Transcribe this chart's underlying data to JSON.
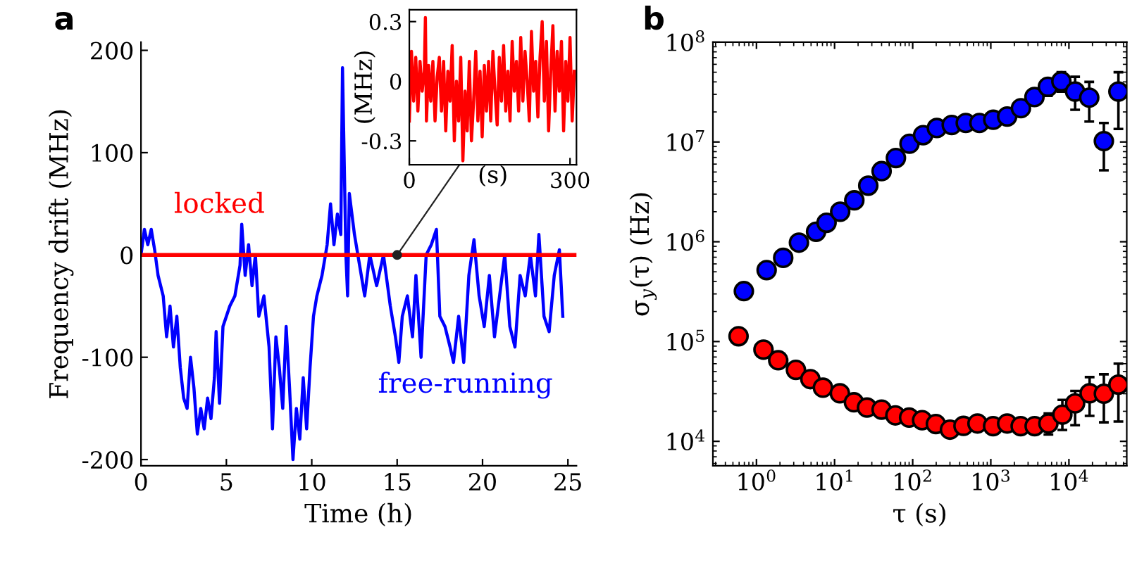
{
  "chart_data": [
    {
      "type": "line",
      "title": "a",
      "xlabel": "Time (h)",
      "ylabel": "Frequency drift (MHz)",
      "xlim": [
        0,
        25.5
      ],
      "xticks": [
        0,
        5,
        10,
        15,
        20,
        25
      ],
      "ylim": [
        -206,
        208
      ],
      "yticks": [
        {
          "value": -200,
          "label": "-200"
        },
        {
          "value": -100,
          "label": "-100"
        },
        0,
        100,
        200
      ],
      "grid": false,
      "legend": false,
      "marker": "none",
      "line_style": "solid",
      "annotations": [
        "free-running",
        "locked"
      ],
      "series": [
        {
          "color": "#0000ff",
          "x": [
            0,
            0.2,
            0.4,
            0.6,
            0.8,
            1.0,
            1.3,
            1.5,
            1.7,
            1.9,
            2.1,
            2.3,
            2.5,
            2.7,
            2.9,
            3.1,
            3.3,
            3.5,
            3.7,
            3.9,
            4.1,
            4.3,
            4.4,
            4.6,
            4.8,
            5.0,
            5.2,
            5.5,
            5.8,
            5.9,
            6.1,
            6.3,
            6.5,
            6.7,
            6.9,
            7.2,
            7.5,
            7.7,
            7.9,
            8.1,
            8.3,
            8.5,
            8.7,
            8.9,
            9.1,
            9.3,
            9.5,
            9.7,
            9.9,
            10.1,
            10.3,
            10.6,
            10.9,
            11.1,
            11.3,
            11.5,
            11.7,
            11.8,
            12.0,
            12.1,
            12.2,
            12.5,
            12.8,
            13.1,
            13.4,
            13.8,
            14.2,
            14.6,
            14.9,
            15.1,
            15.3,
            15.6,
            15.9,
            16.1,
            16.4,
            16.7,
            17.0,
            17.3,
            17.5,
            17.8,
            18.1,
            18.3,
            18.6,
            18.9,
            19.2,
            19.5,
            19.8,
            20.1,
            20.4,
            20.7,
            21.0,
            21.3,
            21.6,
            21.9,
            22.2,
            22.5,
            22.8,
            23.1,
            23.3,
            23.6,
            23.9,
            24.2,
            24.5,
            24.7
          ],
          "values": [
            0,
            25,
            10,
            25,
            5,
            -20,
            -40,
            -80,
            -50,
            -90,
            -60,
            -110,
            -140,
            -150,
            -100,
            -130,
            -175,
            -150,
            -170,
            -140,
            -160,
            -120,
            -75,
            -145,
            -70,
            -60,
            -50,
            -40,
            -10,
            30,
            -20,
            10,
            -30,
            0,
            -60,
            -40,
            -90,
            -170,
            -80,
            -110,
            -150,
            -70,
            -130,
            -200,
            -150,
            -180,
            -120,
            -170,
            -110,
            -60,
            -40,
            -20,
            10,
            50,
            10,
            40,
            20,
            183,
            0,
            -40,
            60,
            20,
            -10,
            -40,
            0,
            -30,
            0,
            -50,
            -80,
            -105,
            -60,
            -40,
            -80,
            -20,
            -100,
            0,
            10,
            25,
            -60,
            -70,
            -90,
            -105,
            -60,
            -105,
            -20,
            15,
            -40,
            -70,
            -20,
            -80,
            -40,
            0,
            -70,
            -90,
            -20,
            -40,
            0,
            -40,
            20,
            -60,
            -75,
            -20,
            5,
            -60
          ]
        },
        {
          "color": "#ff0000",
          "x": [
            0,
            25.5
          ],
          "values": [
            0,
            0
          ]
        }
      ]
    },
    {
      "type": "line",
      "xlabel": "(s)",
      "ylabel": "(MHz)",
      "xlim": [
        0,
        312
      ],
      "xticks": [
        0,
        300
      ],
      "ylim": [
        -0.42,
        0.36
      ],
      "yticks": [
        {
          "value": -0.3,
          "label": "-0.3"
        },
        0,
        0.3
      ],
      "grid": false,
      "legend": false,
      "marker": "none",
      "line_style": "solid",
      "series": [
        {
          "color": "#ff0000",
          "x": [
            0,
            4,
            8,
            12,
            16,
            20,
            24,
            28,
            30,
            32,
            36,
            40,
            44,
            48,
            52,
            56,
            60,
            64,
            68,
            72,
            76,
            80,
            84,
            88,
            92,
            96,
            100,
            104,
            108,
            112,
            116,
            120,
            124,
            128,
            132,
            136,
            140,
            144,
            148,
            152,
            156,
            160,
            164,
            168,
            172,
            176,
            180,
            184,
            188,
            192,
            196,
            200,
            204,
            208,
            212,
            216,
            220,
            224,
            228,
            232,
            236,
            240,
            244,
            248,
            252,
            256,
            260,
            264,
            268,
            272,
            276,
            280,
            284,
            288,
            292,
            296,
            300,
            304,
            308
          ],
          "values": [
            -0.2,
            0.15,
            -0.1,
            0.12,
            -0.15,
            0.1,
            -0.05,
            0.05,
            0.32,
            -0.2,
            0.08,
            -0.1,
            0.1,
            -0.2,
            0.02,
            0.12,
            -0.15,
            0.1,
            -0.25,
            0.05,
            -0.1,
            0.18,
            -0.3,
            0.0,
            -0.2,
            0.12,
            -0.4,
            -0.05,
            -0.25,
            0.1,
            -0.3,
            -0.1,
            0.15,
            -0.2,
            0.05,
            -0.28,
            0.08,
            -0.15,
            0.1,
            -0.2,
            0.15,
            -0.05,
            -0.22,
            0.12,
            -0.1,
            0.18,
            -0.15,
            0.05,
            -0.2,
            0.2,
            -0.05,
            0.1,
            -0.15,
            0.22,
            -0.1,
            0.15,
            0.0,
            -0.2,
            0.25,
            -0.05,
            0.1,
            -0.18,
            0.12,
            0.3,
            -0.1,
            0.2,
            -0.25,
            0.05,
            0.28,
            -0.15,
            0.15,
            -0.05,
            0.2,
            -0.25,
            0.1,
            -0.1,
            0.22,
            -0.2,
            0.05
          ]
        }
      ]
    },
    {
      "type": "scatter",
      "title": "b",
      "xlabel": "τ (s)",
      "ylabel": "σ$_{y}$(τ) (Hz)",
      "log": "xy",
      "xlim": [
        0.277,
        55000
      ],
      "ylim": [
        5700,
        100000000
      ],
      "xticks": [
        {
          "value": 1,
          "label": "10$^{0}$"
        },
        {
          "value": 10,
          "label": "10$^{1}$"
        },
        {
          "value": 100,
          "label": "10$^{2}$"
        },
        {
          "value": 1000,
          "label": "10$^{3}$"
        },
        {
          "value": 10000,
          "label": "10$^{4}$"
        }
      ],
      "yticks": [
        {
          "value": 10000,
          "label": "10$^{4}$"
        },
        {
          "value": 100000,
          "label": "10$^{5}$"
        },
        {
          "value": 1000000,
          "label": "10$^{6}$"
        },
        {
          "value": 10000000,
          "label": "10$^{7}$"
        },
        {
          "value": 100000000,
          "label": "10$^{8}$"
        }
      ],
      "grid": false,
      "legend": false,
      "marker": "circle",
      "series": [
        {
          "color": "#0000ff",
          "x": [
            0.69,
            1.35,
            2.2,
            3.5,
            5.8,
            7.9,
            11.8,
            17.9,
            27,
            40,
            61,
            91,
            136,
            204,
            316,
            478,
            715,
            1075,
            1620,
            2430,
            3620,
            5380,
            8000,
            12000,
            18200,
            28000,
            43000
          ],
          "values": [
            320000,
            520000,
            690000,
            980000,
            1260000,
            1550000,
            2000000,
            2600000,
            3650000,
            5100000,
            6900000,
            9600000,
            11700000,
            13800000,
            14800000,
            15500000,
            15500000,
            16700000,
            18000000,
            21800000,
            28200000,
            35700000,
            40600000,
            32000000,
            27800000,
            10200000,
            32000000
          ],
          "errors": [
            null,
            null,
            null,
            null,
            null,
            null,
            null,
            null,
            null,
            null,
            null,
            null,
            null,
            null,
            null,
            null,
            null,
            null,
            null,
            null,
            null,
            [
              29000000,
              41000000
            ],
            [
              32000000,
              50000000
            ],
            [
              21000000,
              45000000
            ],
            [
              16000000,
              40000000
            ],
            [
              5200000,
              15500000
            ],
            [
              13500000,
              50000000
            ]
          ]
        },
        {
          "color": "#ff0000",
          "x": [
            0.59,
            1.23,
            1.9,
            3.2,
            4.9,
            7.1,
            11.7,
            17.7,
            26,
            40,
            60,
            90,
            132,
            198,
            300,
            447,
            675,
            1070,
            1620,
            2410,
            3640,
            5460,
            8240,
            12000,
            18400,
            28000,
            43000
          ],
          "values": [
            113000,
            83000,
            65000,
            52000,
            42000,
            34500,
            30300,
            24600,
            21800,
            20800,
            18200,
            17300,
            16300,
            14900,
            13100,
            14300,
            15100,
            14200,
            15100,
            14200,
            14200,
            15100,
            18500,
            24000,
            30300,
            30000,
            37000
          ],
          "errors": [
            null,
            null,
            null,
            null,
            null,
            null,
            null,
            null,
            null,
            null,
            null,
            null,
            null,
            null,
            null,
            null,
            null,
            null,
            null,
            null,
            null,
            [
              11700,
              19000
            ],
            [
              13000,
              26000
            ],
            [
              14500,
              32000
            ],
            [
              18000,
              44000
            ],
            [
              15500,
              47000
            ],
            [
              15800,
              60000
            ]
          ]
        }
      ]
    }
  ]
}
